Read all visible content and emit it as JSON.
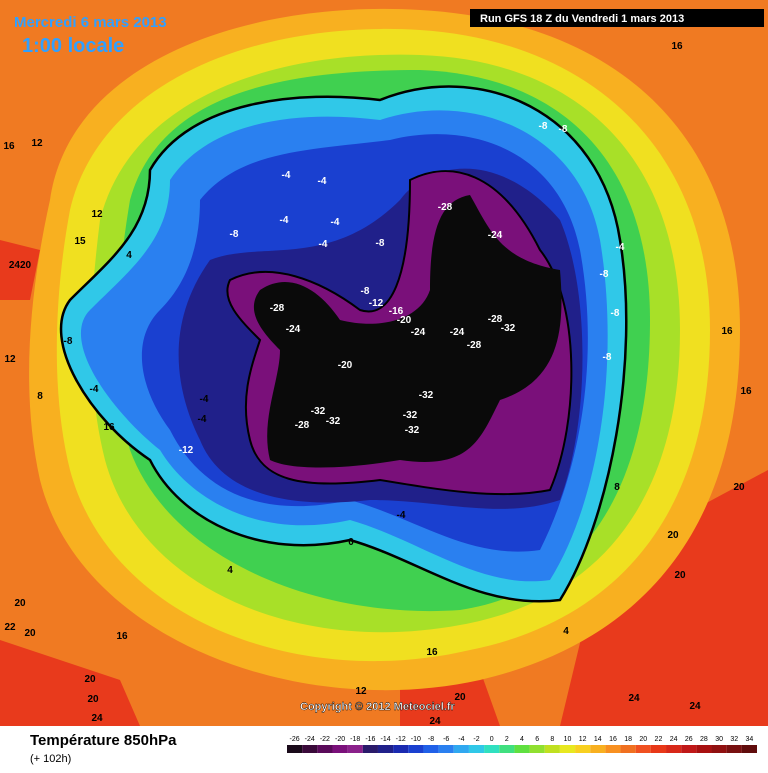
{
  "header": {
    "date": "Mercredi 6 mars 2013",
    "time": "1:00 locale",
    "run": "Run GFS 18 Z du Vendredi 1 mars 2013"
  },
  "copyright": "Copyright © 2012 Meteociel.fr",
  "footer": {
    "title": "Température 850hPa",
    "lead": "(+ 102h)"
  },
  "colorbar": {
    "ticks": [
      -26,
      -24,
      -22,
      -20,
      -18,
      -16,
      -14,
      -12,
      -10,
      -8,
      -6,
      -4,
      -2,
      0,
      2,
      4,
      6,
      8,
      10,
      12,
      14,
      16,
      18,
      20,
      22,
      24,
      26,
      28,
      30,
      32,
      34
    ],
    "colors": [
      "#1a0a1a",
      "#3a0a3a",
      "#5a0a5a",
      "#7a107a",
      "#8a208a",
      "#2a1a6a",
      "#20208a",
      "#1a2ab0",
      "#1a40d0",
      "#2060e8",
      "#2a80f0",
      "#30a8f0",
      "#30c8e8",
      "#30e0c0",
      "#40e080",
      "#60e040",
      "#90e030",
      "#c0e020",
      "#e8e820",
      "#f8d020",
      "#f8b020",
      "#f89020",
      "#f07020",
      "#f05020",
      "#e83818",
      "#d82818",
      "#c01818",
      "#a81010",
      "#901010",
      "#781010",
      "#600c0c"
    ]
  },
  "contour_labels": [
    "-28",
    "-24",
    "-28",
    "-24",
    "-12",
    "-16",
    "-20",
    "-24",
    "-24",
    "-28",
    "-32",
    "-28",
    "-20",
    "-32",
    "-32",
    "-32",
    "-32",
    "-32",
    "-28",
    "-8",
    "-8",
    "-8",
    "-4",
    "-4",
    "-4",
    "-4",
    "-4",
    "-8",
    "-8",
    "-4",
    "-8",
    "-8",
    "-8",
    "-12",
    "-4",
    "-4",
    "-8",
    "-4",
    "-4",
    "0",
    "4",
    "4",
    "8",
    "12",
    "16",
    "16",
    "16",
    "12",
    "12",
    "15",
    "2420",
    "20",
    "20",
    "22",
    "16",
    "20",
    "20",
    "24",
    "24",
    "24",
    "20",
    "20",
    "20",
    "16",
    "16",
    "16",
    "12",
    "20",
    "24",
    "8",
    "4"
  ]
}
